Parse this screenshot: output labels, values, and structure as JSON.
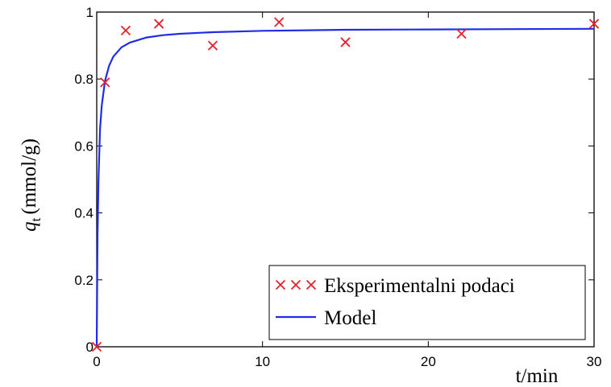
{
  "chart_data": {
    "type": "scatter",
    "xlabel": "t/min",
    "ylabel": {
      "symbol": "q",
      "subscript": "t",
      "unit": "(mmol/g)"
    },
    "xlim": [
      0,
      30
    ],
    "ylim": [
      0,
      1
    ],
    "x_ticks": [
      "0",
      "10",
      "20",
      "30"
    ],
    "y_ticks": [
      "0",
      "0.2",
      "0.4",
      "0.6",
      "0.8",
      "1"
    ],
    "grid": false,
    "legend": "bottom-right",
    "series": [
      {
        "name": "Eksperimentalni podaci",
        "kind": "scatter",
        "marker": "x",
        "color": "#e8202a",
        "x": [
          0,
          0.5,
          1.75,
          3.75,
          7,
          11,
          15,
          22,
          30
        ],
        "y": [
          0,
          0.79,
          0.945,
          0.965,
          0.9,
          0.97,
          0.91,
          0.935,
          0.965
        ]
      },
      {
        "name": "Model",
        "kind": "line",
        "color": "#1f2ee6",
        "x": [
          0,
          0.05,
          0.1,
          0.2,
          0.3,
          0.5,
          0.75,
          1,
          1.5,
          2,
          3,
          4,
          5,
          7,
          10,
          15,
          20,
          25,
          30
        ],
        "y": [
          0,
          0.33,
          0.49,
          0.65,
          0.72,
          0.795,
          0.84,
          0.867,
          0.895,
          0.909,
          0.924,
          0.931,
          0.935,
          0.94,
          0.944,
          0.947,
          0.948,
          0.949,
          0.95
        ]
      }
    ]
  }
}
